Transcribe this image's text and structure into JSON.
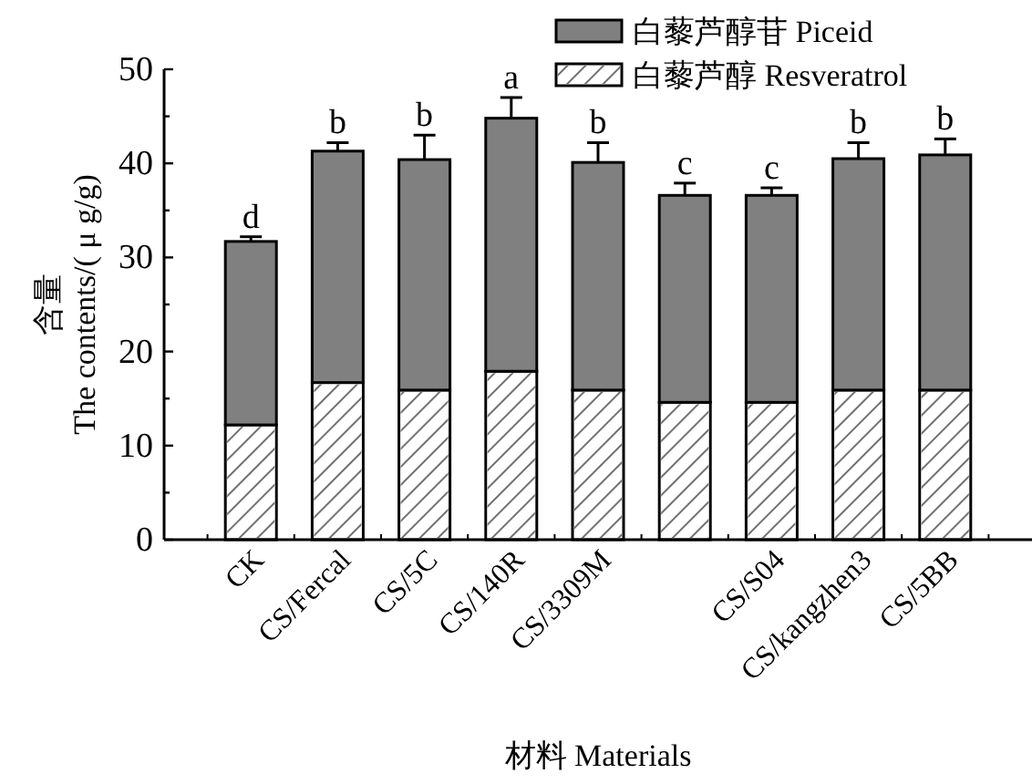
{
  "chart_data": {
    "type": "bar",
    "stacked": true,
    "xlabel": "材料 Materials",
    "ylabel": "含量\nThe contents/( μ g/g)",
    "categories": [
      "CK",
      "CS/Fercal",
      "CS/5C",
      "CS/140R",
      "CS/3309M",
      null,
      "CS/S04",
      "CS/kangzhen3",
      "CS/5BB"
    ],
    "series": [
      {
        "name": "白藜芦醇 Resveratrol",
        "color": "#ffffff",
        "values": [
          12.2,
          16.7,
          15.9,
          17.9,
          15.9,
          14.6,
          14.6,
          15.9,
          15.9
        ]
      },
      {
        "name": "白藜芦醇苷 Piceid",
        "color": "#808080",
        "values": [
          19.5,
          24.6,
          24.5,
          26.9,
          24.2,
          22.0,
          22.0,
          24.6,
          25.0
        ],
        "errors": [
          [
            31.7,
            32.2
          ],
          [
            41.3,
            42.2
          ],
          [
            40.4,
            43.0
          ],
          [
            44.8,
            47.0
          ],
          [
            40.1,
            42.2
          ],
          [
            36.6,
            37.9
          ],
          [
            36.6,
            37.4
          ],
          [
            40.5,
            42.2
          ],
          [
            40.9,
            42.6
          ]
        ]
      }
    ],
    "annotations": [
      {
        "text": "d",
        "y": 32.2
      },
      {
        "text": "b",
        "y": 42.2
      },
      {
        "text": "b",
        "y": 43.0
      },
      {
        "text": "a",
        "y": 47.0
      },
      {
        "text": "b",
        "y": 42.2
      },
      {
        "text": "c",
        "y": 37.9
      },
      {
        "text": "c",
        "y": 37.4
      },
      {
        "text": "b",
        "y": 42.2
      },
      {
        "text": "b",
        "y": 42.6
      }
    ],
    "ylim": [
      0,
      50
    ],
    "yticks": [
      0,
      {
        "value": 5,
        "label": null
      },
      10,
      {
        "value": 15,
        "label": null
      },
      20,
      {
        "value": 25,
        "label": null
      },
      30,
      {
        "value": 35,
        "label": null
      },
      40,
      {
        "value": 45,
        "label": null
      },
      50
    ],
    "legend": "top right",
    "grid": false
  }
}
